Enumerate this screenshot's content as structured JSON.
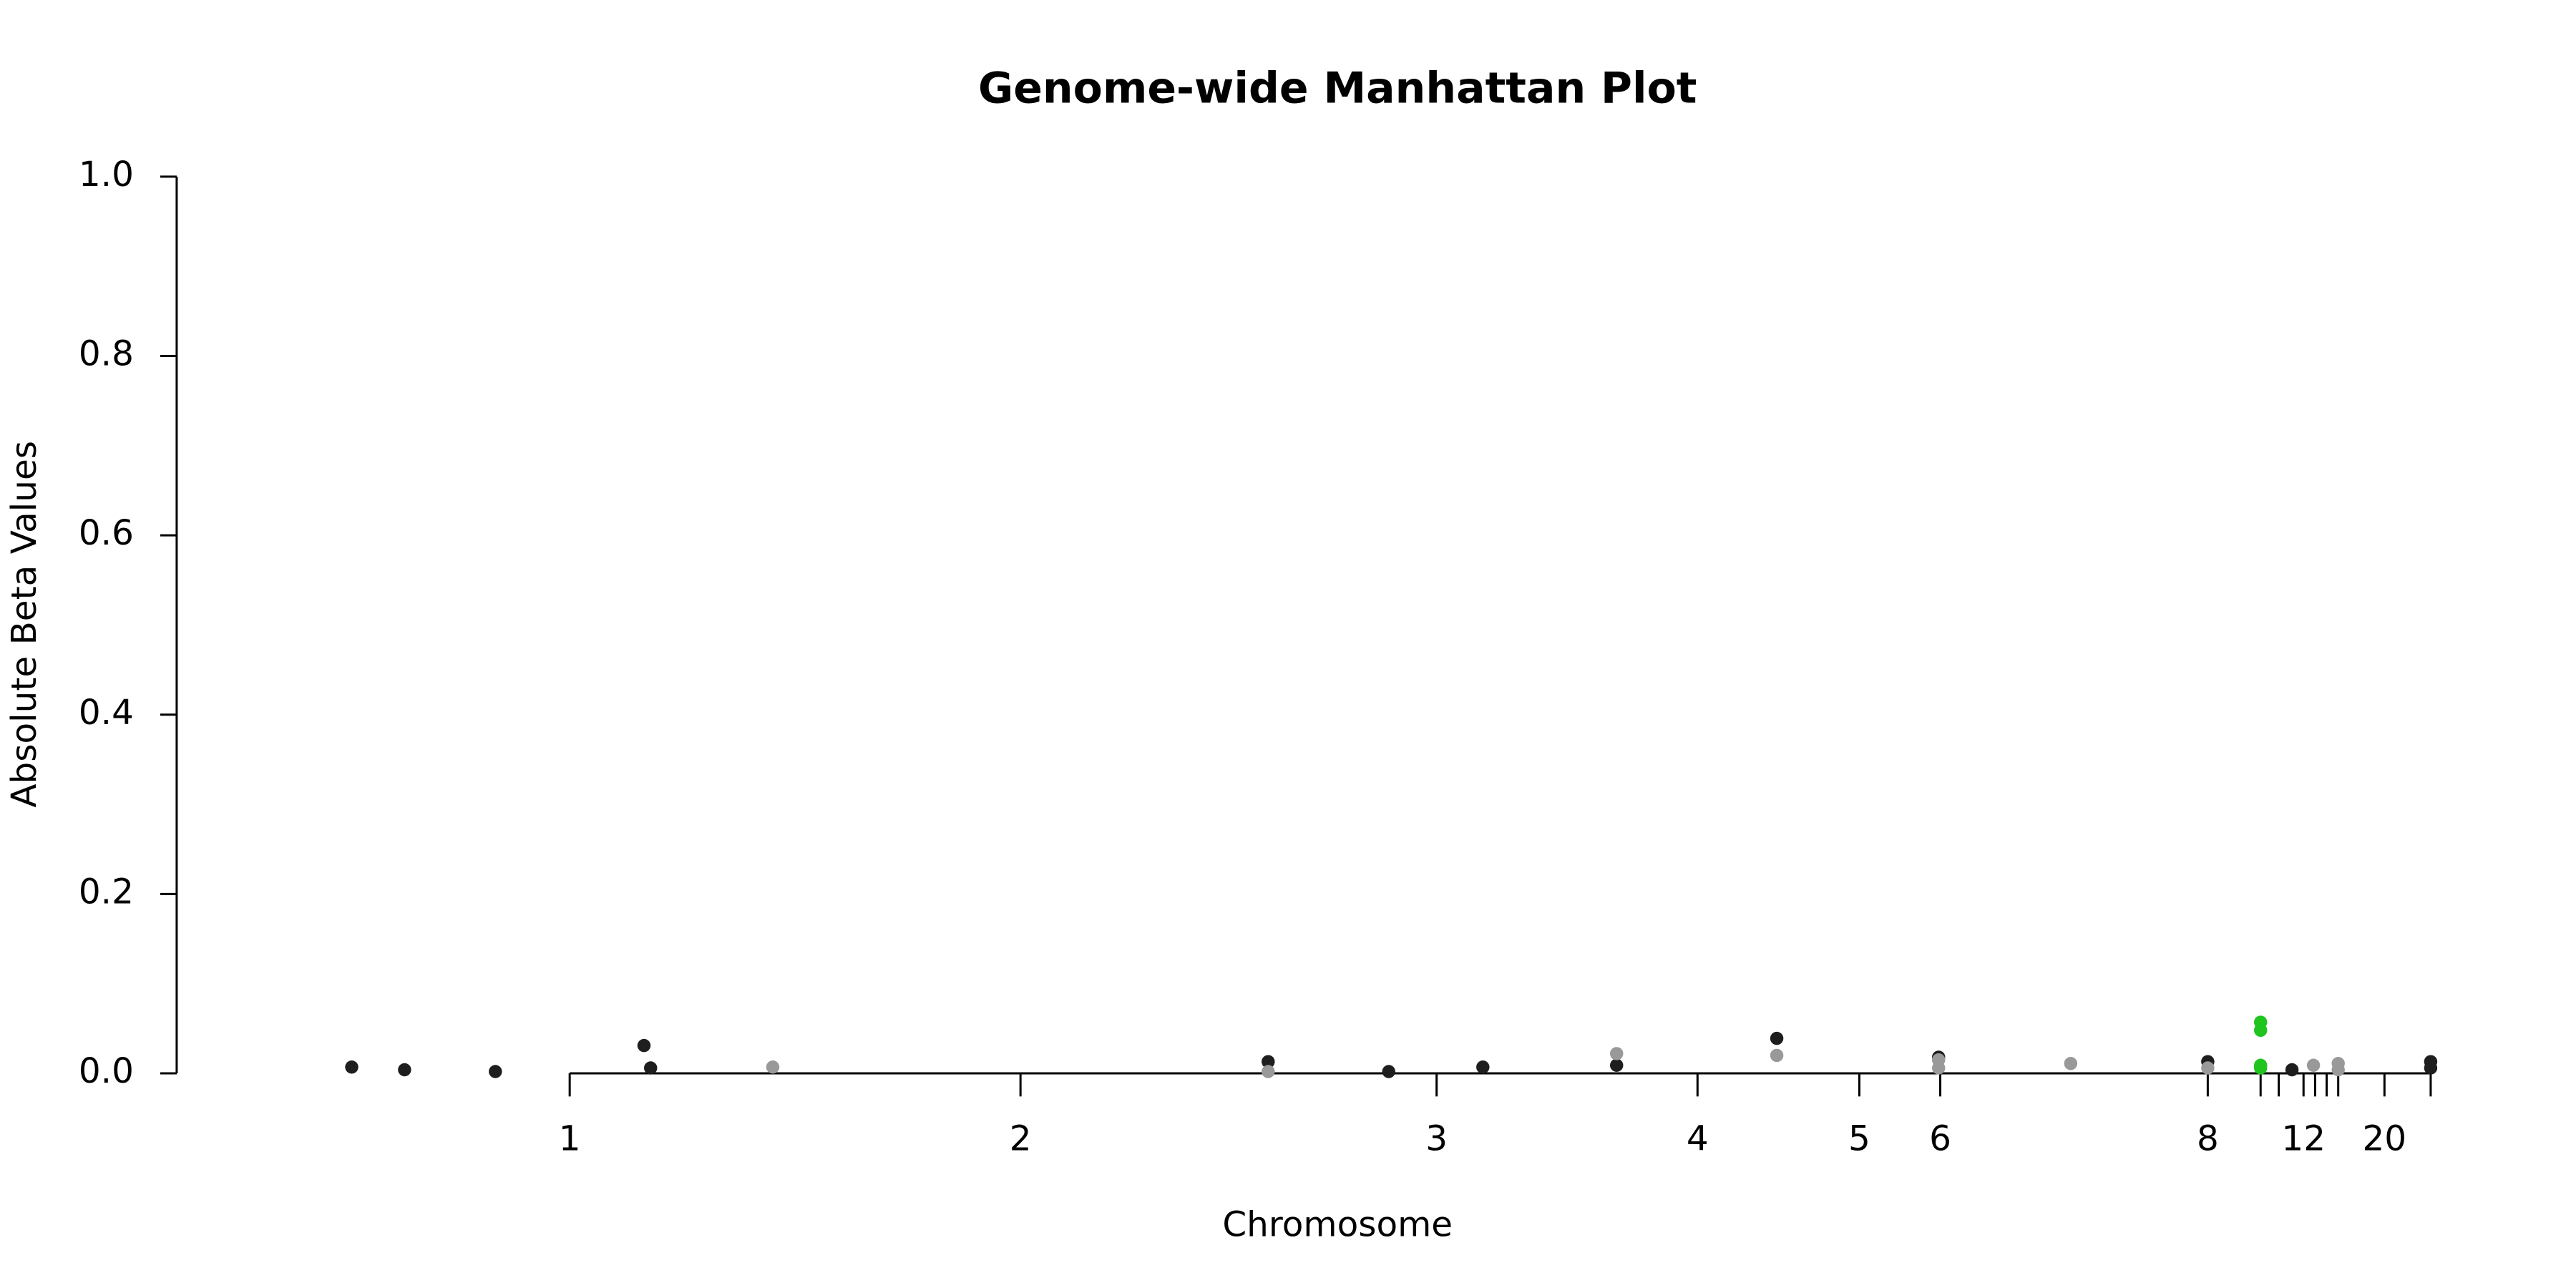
{
  "chart_data": {
    "type": "scatter",
    "title": "Genome-wide Manhattan Plot",
    "x_label": "Chromosome",
    "y_label": "Absolute Beta Values",
    "xlim": [
      0,
      1413
    ],
    "ylim": [
      0,
      1.0
    ],
    "xticks": [
      {
        "value": 238,
        "label": "1"
      },
      {
        "value": 511,
        "label": "2"
      },
      {
        "value": 763,
        "label": "3"
      },
      {
        "value": 921,
        "label": "4"
      },
      {
        "value": 1019,
        "label": "5"
      },
      {
        "value": 1068,
        "label": "6"
      },
      {
        "value": 1230,
        "label": "8"
      },
      {
        "value": 1262,
        "label": null
      },
      {
        "value": 1273,
        "label": null
      },
      {
        "value": 1288,
        "label": "12"
      },
      {
        "value": 1295,
        "label": null
      },
      {
        "value": 1302,
        "label": null
      },
      {
        "value": 1309,
        "label": null
      },
      {
        "value": 1337,
        "label": "20"
      },
      {
        "value": 1365,
        "label": null
      }
    ],
    "yticks": [
      {
        "value": 0,
        "label": "0.0"
      },
      {
        "value": 0.2,
        "label": "0.2"
      },
      {
        "value": 0.4,
        "label": "0.4"
      },
      {
        "value": 0.6,
        "label": "0.6"
      },
      {
        "value": 0.8,
        "label": "0.8"
      },
      {
        "value": 1.0,
        "label": "1.0"
      }
    ],
    "series": [
      {
        "color": "#1e1e1e",
        "x": [
          106,
          138,
          193,
          283,
          287,
          661,
          734,
          791,
          872,
          969,
          1067,
          1230,
          1281,
          1365,
          1365
        ],
        "values": [
          0.007,
          0.004,
          0.002,
          0.031,
          0.006,
          0.013,
          0.002,
          0.007,
          0.009,
          0.039,
          0.018,
          0.013,
          0.004,
          0.013,
          0.006
        ]
      },
      {
        "color": "#999999",
        "x": [
          361,
          661,
          872,
          969,
          1067,
          1067,
          1147,
          1230,
          1294,
          1309,
          1309
        ],
        "values": [
          0.007,
          0.002,
          0.022,
          0.02,
          0.015,
          0.006,
          0.011,
          0.006,
          0.009,
          0.011,
          0.004
        ]
      },
      {
        "color": "#1fc41f",
        "x": [
          1262,
          1262,
          1262,
          1262
        ],
        "values": [
          0.057,
          0.048,
          0.009,
          0.006
        ]
      }
    ]
  }
}
